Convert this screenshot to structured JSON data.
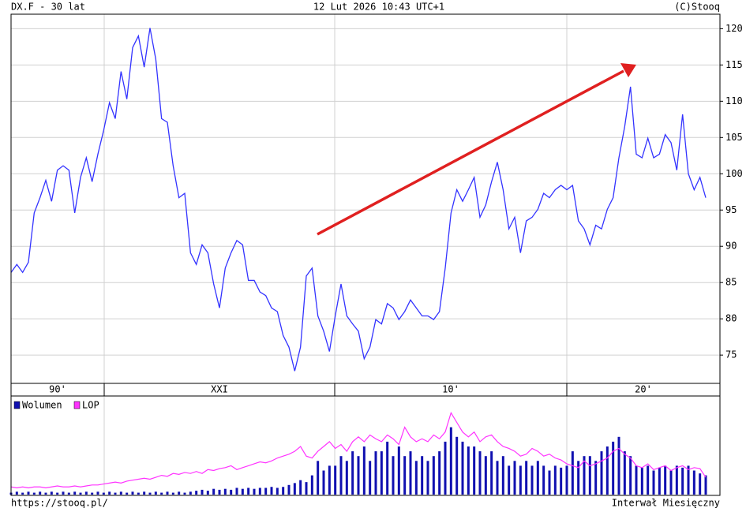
{
  "header": {
    "left": "DX.F - 30 lat",
    "center": "12 Lut 2026 10:43 UTC+1",
    "right": "(C)Stooq"
  },
  "footer": {
    "left": "https://stooq.pl/",
    "right": "Interwał Miesięczny"
  },
  "chart_data": [
    {
      "type": "line",
      "color": "#3333ff",
      "grid": true,
      "x_labels": [
        "90'",
        "XXI",
        "10'",
        "20'"
      ],
      "ylim": [
        71.1,
        122
      ],
      "yticks": [
        75,
        80,
        85,
        90,
        95,
        100,
        105,
        110,
        115,
        120
      ],
      "values": [
        86.4,
        87.5,
        86.4,
        87.8,
        94.6,
        96.7,
        99.1,
        96.2,
        100.5,
        101.1,
        100.5,
        94.6,
        99.5,
        102.2,
        98.9,
        102.7,
        106,
        109.8,
        107.6,
        114.1,
        110.3,
        117.4,
        119,
        114.7,
        120.1,
        115.8,
        107.6,
        107.1,
        101.1,
        96.7,
        97.3,
        89.1,
        87.5,
        90.2,
        89.1,
        84.8,
        81.5,
        87,
        89.1,
        90.8,
        90.2,
        85.3,
        85.3,
        83.7,
        83.2,
        81.5,
        81,
        77.7,
        76.1,
        72.8,
        76.1,
        85.9,
        87,
        80.4,
        78.3,
        75.5,
        80.4,
        84.8,
        80.4,
        79.3,
        78.3,
        74.5,
        76.1,
        79.9,
        79.3,
        82.1,
        81.5,
        79.9,
        81,
        82.6,
        81.5,
        80.4,
        80.4,
        79.9,
        81,
        87,
        94.6,
        97.8,
        96.2,
        97.8,
        99.5,
        94,
        95.7,
        98.9,
        101.6,
        97.8,
        92.4,
        94,
        89.1,
        93.5,
        94,
        95.1,
        97.3,
        96.7,
        97.8,
        98.4,
        97.8,
        98.4,
        93.5,
        92.4,
        90.2,
        92.9,
        92.4,
        95.1,
        96.7,
        102.2,
        106.5,
        112,
        102.7,
        102.2,
        104.9,
        102.2,
        102.7,
        105.4,
        104.3,
        100.5,
        108.2,
        100,
        97.8,
        99.5,
        96.7
      ]
    },
    {
      "type": "bar",
      "ylim": [
        0,
        100
      ],
      "legend": "top-left",
      "series": [
        {
          "name": "Wolumen",
          "type": "bar",
          "color": "#1010b0",
          "values": [
            2,
            3,
            2,
            3,
            2,
            3,
            2,
            3,
            2,
            3,
            2,
            3,
            2,
            3,
            2,
            3,
            2,
            3,
            2,
            3,
            2,
            3,
            2,
            3,
            2,
            3,
            2,
            3,
            2,
            3,
            2,
            3,
            4,
            5,
            4,
            6,
            5,
            6,
            5,
            7,
            6,
            7,
            6,
            7,
            7,
            8,
            7,
            8,
            10,
            12,
            15,
            13,
            20,
            35,
            25,
            30,
            30,
            40,
            35,
            45,
            40,
            50,
            35,
            45,
            45,
            55,
            40,
            50,
            40,
            45,
            35,
            40,
            35,
            40,
            45,
            55,
            70,
            60,
            55,
            50,
            50,
            45,
            40,
            45,
            35,
            40,
            30,
            35,
            30,
            35,
            30,
            35,
            30,
            25,
            30,
            28,
            30,
            45,
            35,
            40,
            40,
            35,
            45,
            50,
            55,
            60,
            45,
            40,
            30,
            28,
            30,
            25,
            28,
            30,
            25,
            30,
            28,
            30,
            25,
            22,
            20
          ]
        },
        {
          "name": "LOP",
          "type": "line",
          "color": "#ff33ff",
          "values": [
            8,
            7,
            8,
            7,
            8,
            8,
            7,
            8,
            9,
            8,
            8,
            9,
            8,
            9,
            10,
            10,
            11,
            12,
            13,
            12,
            14,
            15,
            16,
            17,
            16,
            18,
            20,
            19,
            22,
            21,
            23,
            22,
            24,
            22,
            26,
            25,
            27,
            28,
            30,
            26,
            28,
            30,
            32,
            34,
            33,
            35,
            38,
            40,
            42,
            45,
            50,
            40,
            38,
            45,
            50,
            55,
            48,
            52,
            45,
            55,
            60,
            55,
            62,
            58,
            55,
            62,
            58,
            52,
            70,
            60,
            55,
            58,
            55,
            62,
            58,
            65,
            85,
            75,
            65,
            60,
            65,
            55,
            60,
            62,
            55,
            50,
            48,
            45,
            40,
            42,
            48,
            45,
            40,
            42,
            38,
            36,
            32,
            30,
            28,
            35,
            30,
            32,
            35,
            38,
            45,
            48,
            42,
            38,
            30,
            28,
            32,
            26,
            28,
            30,
            25,
            28,
            30,
            26,
            28,
            27,
            18
          ]
        }
      ]
    }
  ]
}
